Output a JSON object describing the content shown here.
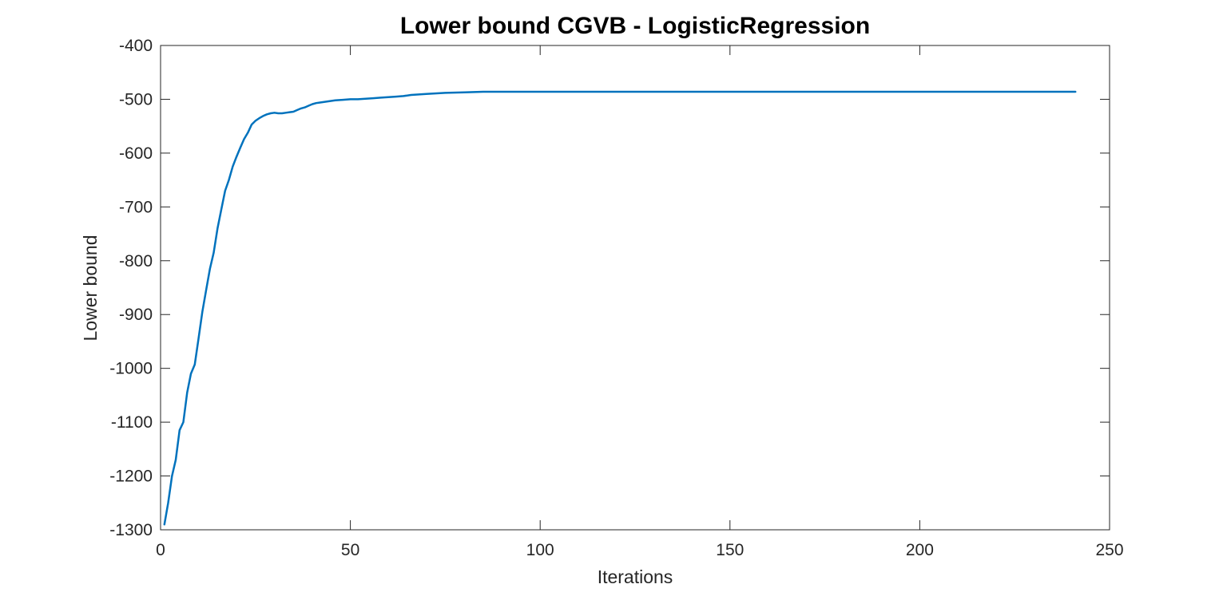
{
  "chart_data": {
    "type": "line",
    "title": "Lower bound CGVB - LogisticRegression",
    "xlabel": "Iterations",
    "ylabel": "Lower bound",
    "xlim": [
      0,
      250
    ],
    "ylim": [
      -1300,
      -400
    ],
    "xticks": [
      0,
      50,
      100,
      150,
      200,
      250
    ],
    "yticks": [
      -1300,
      -1200,
      -1100,
      -1000,
      -900,
      -800,
      -700,
      -600,
      -500,
      -400
    ],
    "grid": false,
    "box": true,
    "series": [
      {
        "color": "#0072BD",
        "x": [
          1,
          2,
          3,
          4,
          5,
          6,
          7,
          8,
          9,
          10,
          11,
          12,
          13,
          14,
          15,
          16,
          17,
          18,
          19,
          20,
          21,
          22,
          23,
          24,
          25,
          26,
          27,
          28,
          29,
          30,
          31,
          32,
          33,
          34,
          35,
          36,
          37,
          38,
          39,
          40,
          41,
          42,
          44,
          46,
          48,
          50,
          52,
          54,
          56,
          58,
          60,
          62,
          64,
          66,
          68,
          70,
          75,
          80,
          85,
          90,
          100,
          120,
          150,
          200,
          241
        ],
        "y": [
          -1290,
          -1250,
          -1200,
          -1170,
          -1115,
          -1100,
          -1045,
          -1010,
          -993,
          -945,
          -895,
          -855,
          -815,
          -785,
          -740,
          -705,
          -670,
          -650,
          -625,
          -607,
          -590,
          -574,
          -562,
          -547,
          -540,
          -535,
          -531,
          -528,
          -526,
          -525,
          -526,
          -526,
          -525,
          -524,
          -523,
          -520,
          -517,
          -515,
          -512,
          -509,
          -507,
          -506,
          -504,
          -502,
          -501,
          -500,
          -500,
          -499,
          -498,
          -497,
          -496,
          -495,
          -494,
          -492,
          -491,
          -490,
          -488,
          -487,
          -486,
          -486,
          -486,
          -486,
          -486,
          -486,
          -486
        ]
      }
    ]
  }
}
